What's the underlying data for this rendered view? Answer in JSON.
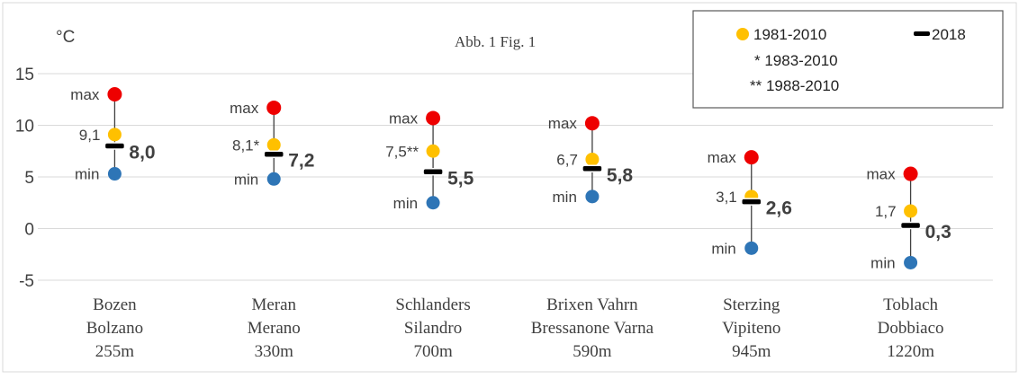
{
  "chart_data": {
    "type": "scatter",
    "figure_label": "Abb. 1   Fig. 1",
    "ylabel": "°C",
    "ylim": [
      -5,
      15
    ],
    "yticks": [
      -5,
      0,
      5,
      10,
      15
    ],
    "grid": true,
    "legend_position": "top-right",
    "legend": {
      "normal": "1981-2010",
      "current": "2018",
      "note1": "* 1983-2010",
      "note2": "** 1988-2010"
    },
    "colors": {
      "max": "#ee0000",
      "normal": "#ffc000",
      "min": "#2e75b6",
      "current": "#000000",
      "range_line": "#404040",
      "grid": "#d9d9d9"
    },
    "stations": [
      {
        "line1": "Bozen",
        "line2": "Bolzano",
        "line3": "255m",
        "max": 13.0,
        "normal": 9.1,
        "normal_label": "9,1",
        "min": 5.3,
        "current": 8.0,
        "current_label": "8,0",
        "max_label": "max",
        "min_label": "min"
      },
      {
        "line1": "Meran",
        "line2": "Merano",
        "line3": "330m",
        "max": 11.7,
        "normal": 8.1,
        "normal_label": "8,1*",
        "min": 4.8,
        "current": 7.2,
        "current_label": "7,2",
        "max_label": "max",
        "min_label": "min"
      },
      {
        "line1": "Schlanders",
        "line2": "Silandro",
        "line3": "700m",
        "max": 10.7,
        "normal": 7.5,
        "normal_label": "7,5**",
        "min": 2.5,
        "current": 5.5,
        "current_label": "5,5",
        "max_label": "max",
        "min_label": "min"
      },
      {
        "line1": "Brixen Vahrn",
        "line2": "Bressanone Varna",
        "line3": "590m",
        "max": 10.2,
        "normal": 6.7,
        "normal_label": "6,7",
        "min": 3.1,
        "current": 5.8,
        "current_label": "5,8",
        "max_label": "max",
        "min_label": "min"
      },
      {
        "line1": "Sterzing",
        "line2": "Vipiteno",
        "line3": "945m",
        "max": 6.9,
        "normal": 3.1,
        "normal_label": "3,1",
        "min": -1.9,
        "current": 2.6,
        "current_label": "2,6",
        "max_label": "max",
        "min_label": "min"
      },
      {
        "line1": "Toblach",
        "line2": "Dobbiaco",
        "line3": "1220m",
        "max": 5.3,
        "normal": 1.7,
        "normal_label": "1,7",
        "min": -3.3,
        "current": 0.3,
        "current_label": "0,3",
        "max_label": "max",
        "min_label": "min"
      }
    ]
  }
}
